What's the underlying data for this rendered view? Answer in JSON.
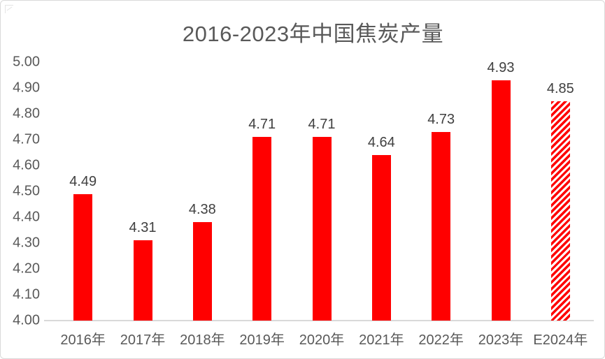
{
  "chart_data": {
    "type": "bar",
    "title": "2016-2023年中国焦炭产量",
    "categories": [
      "2016年",
      "2017年",
      "2018年",
      "2019年",
      "2020年",
      "2021年",
      "2022年",
      "2023年",
      "E2024年"
    ],
    "values": [
      4.49,
      4.31,
      4.38,
      4.71,
      4.71,
      4.64,
      4.73,
      4.93,
      4.85
    ],
    "data_labels": [
      "4.49",
      "4.31",
      "4.38",
      "4.71",
      "4.71",
      "4.64",
      "4.73",
      "4.93",
      "4.85"
    ],
    "yticks": [
      "5.00",
      "4.90",
      "4.80",
      "4.70",
      "4.60",
      "4.50",
      "4.40",
      "4.30",
      "4.20",
      "4.10",
      "4.00"
    ],
    "ylim": [
      4.0,
      5.0
    ],
    "xlabel": "",
    "ylabel": "",
    "grid": false,
    "legend": false,
    "bar_color": "#ff0000",
    "estimate_bar_index": 8,
    "estimate_bar_style": "diagonal-red-white-stripes",
    "axis_line_color": "#d9d9d9",
    "tick_text_color": "#595959",
    "data_label_color": "#404040",
    "title_color": "#595959"
  }
}
